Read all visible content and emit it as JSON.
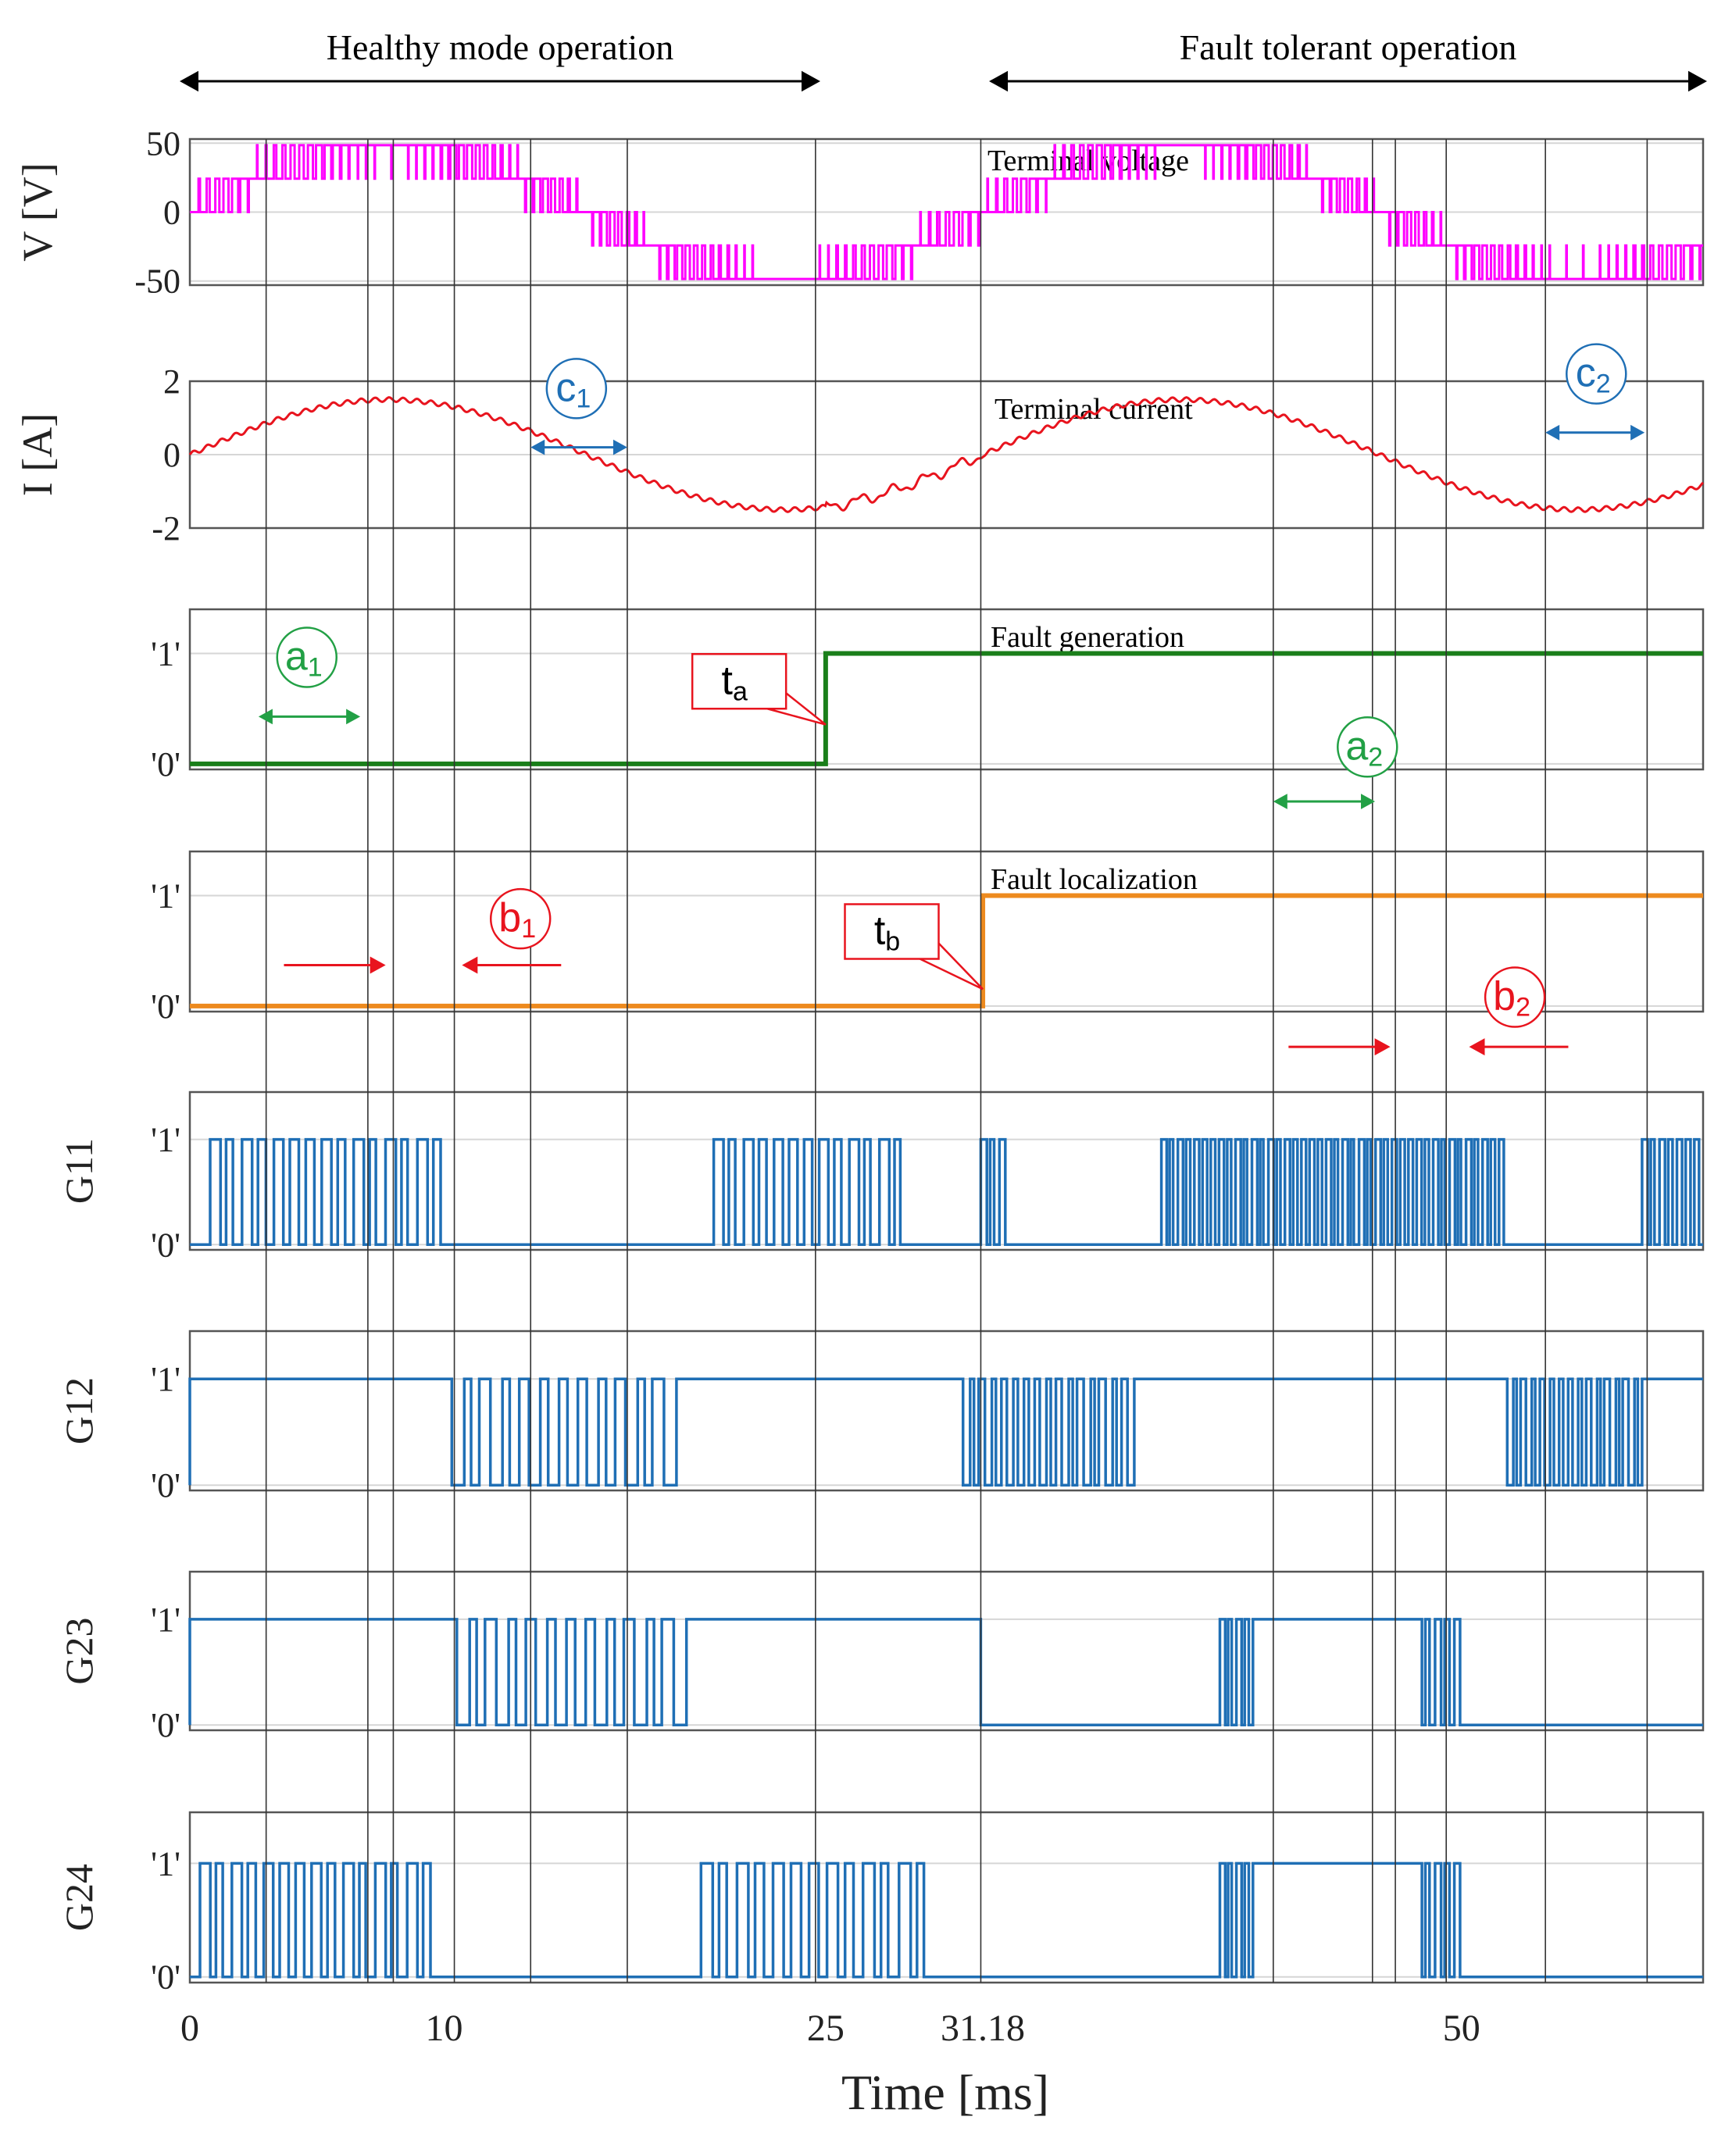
{
  "chart_data": {
    "type": "line",
    "title": "",
    "xlabel": "Time [ms]",
    "xlim": [
      0,
      59.5
    ],
    "x_ticks": [
      {
        "value": 0,
        "label": "0"
      },
      {
        "value": 10,
        "label": "10"
      },
      {
        "value": 25,
        "label": "25"
      },
      {
        "value": 31.18,
        "label": "31.18"
      },
      {
        "value": 50,
        "label": "50"
      }
    ],
    "top_annotations": {
      "healthy": {
        "label": "Healthy mode operation",
        "x_start": 0,
        "x_end": 25
      },
      "fault": {
        "label": "Fault tolerant operation",
        "x_start": 31.18,
        "x_end": 59.5
      }
    },
    "guide_lines_ms": [
      3,
      7,
      8,
      10.4,
      13.4,
      17.2,
      24.6,
      31.1,
      42.6,
      46.5,
      47.4,
      49.4,
      53.3,
      57.3
    ],
    "panels": [
      {
        "id": "voltage",
        "ylabel": "V [V]",
        "title": "Terminal voltage",
        "ylim": [
          -53,
          53
        ],
        "ticks": [
          {
            "v": 50,
            "label": "50"
          },
          {
            "v": 0,
            "label": "0"
          },
          {
            "v": -50,
            "label": "-50"
          }
        ],
        "color": "#ff00ff",
        "kind": "multilevel_pwm",
        "levels": [
          -50,
          -25,
          0,
          25,
          50
        ],
        "period_ms": 31.18
      },
      {
        "id": "current",
        "ylabel": "I [A]",
        "title": "Terminal current",
        "ylim": [
          -2,
          2
        ],
        "ticks": [
          {
            "v": 2,
            "label": "2"
          },
          {
            "v": 0,
            "label": "0"
          },
          {
            "v": -2,
            "label": "-2"
          }
        ],
        "color": "#e8141e",
        "kind": "sine_ripple",
        "amplitude": 1.5,
        "period_ms": 31.18
      },
      {
        "id": "fault_generation",
        "ylabel": "",
        "title": "Fault generation",
        "ylim": [
          -0.05,
          1.4
        ],
        "ticks": [
          {
            "v": 1,
            "label": "'1'"
          },
          {
            "v": 0,
            "label": "'0'"
          }
        ],
        "color": "#1a7f1a",
        "kind": "step",
        "step_at_ms": 25
      },
      {
        "id": "fault_localization",
        "ylabel": "",
        "title": "Fault localization",
        "ylim": [
          -0.05,
          1.4
        ],
        "ticks": [
          {
            "v": 1,
            "label": "'1'"
          },
          {
            "v": 0,
            "label": "'0'"
          }
        ],
        "color": "#ed8a1e",
        "kind": "step",
        "step_at_ms": 31.18
      },
      {
        "id": "G11",
        "ylabel": "G11",
        "title": "",
        "ylim": [
          -0.05,
          1.45
        ],
        "ticks": [
          {
            "v": 1,
            "label": "'1'"
          },
          {
            "v": 0,
            "label": "'0'"
          }
        ],
        "color": "#1f6fb5",
        "kind": "gate",
        "segments": [
          {
            "start": 0.8,
            "end": 10.2,
            "mode": "pwm",
            "dense": 15
          },
          {
            "start": 20.6,
            "end": 28.3,
            "mode": "pwm",
            "dense": 13
          },
          {
            "start": 31.1,
            "end": 32.2,
            "mode": "pwm",
            "dense": 3
          },
          {
            "start": 38.2,
            "end": 51.8,
            "mode": "pwm",
            "dense": 42
          },
          {
            "start": 57.1,
            "end": 59.5,
            "mode": "pwm",
            "dense": 7
          }
        ]
      },
      {
        "id": "G12",
        "ylabel": "G12",
        "title": "",
        "ylim": [
          -0.05,
          1.45
        ],
        "ticks": [
          {
            "v": 1,
            "label": "'1'"
          },
          {
            "v": 0,
            "label": "'0'"
          }
        ],
        "color": "#1f6fb5",
        "kind": "gate",
        "segments": [
          {
            "start": 0,
            "end": 10.3,
            "mode": "high"
          },
          {
            "start": 10.3,
            "end": 19.4,
            "mode": "pwm_inv",
            "dense": 12
          },
          {
            "start": 19.4,
            "end": 30.4,
            "mode": "high"
          },
          {
            "start": 30.4,
            "end": 37.3,
            "mode": "pwm_inv",
            "dense": 16
          },
          {
            "start": 37.3,
            "end": 51.8,
            "mode": "high"
          },
          {
            "start": 51.8,
            "end": 57.3,
            "mode": "pwm_inv",
            "dense": 15
          },
          {
            "start": 57.3,
            "end": 59.5,
            "mode": "high"
          }
        ]
      },
      {
        "id": "G23",
        "ylabel": "G23",
        "title": "",
        "ylim": [
          -0.05,
          1.45
        ],
        "ticks": [
          {
            "v": 1,
            "label": "'1'"
          },
          {
            "v": 0,
            "label": "'0'"
          }
        ],
        "color": "#1f6fb5",
        "kind": "gate",
        "segments": [
          {
            "start": 0,
            "end": 10.5,
            "mode": "high"
          },
          {
            "start": 10.5,
            "end": 19.8,
            "mode": "pwm_inv",
            "dense": 12
          },
          {
            "start": 19.8,
            "end": 30.8,
            "mode": "high"
          },
          {
            "start": 31.1,
            "end": 40.5,
            "mode": "low"
          },
          {
            "start": 40.5,
            "end": 41.8,
            "mode": "pwm",
            "dense": 4
          },
          {
            "start": 41.8,
            "end": 48.2,
            "mode": "high"
          },
          {
            "start": 48.2,
            "end": 50.1,
            "mode": "pwm",
            "dense": 5
          },
          {
            "start": 50.1,
            "end": 59.5,
            "mode": "low"
          }
        ]
      },
      {
        "id": "G24",
        "ylabel": "G24",
        "title": "",
        "ylim": [
          -0.05,
          1.45
        ],
        "ticks": [
          {
            "v": 1,
            "label": "'1'"
          },
          {
            "v": 0,
            "label": "'0'"
          }
        ],
        "color": "#1f6fb5",
        "kind": "gate",
        "segments": [
          {
            "start": 0.4,
            "end": 9.8,
            "mode": "pwm",
            "dense": 15
          },
          {
            "start": 20.1,
            "end": 29.3,
            "mode": "pwm",
            "dense": 13
          },
          {
            "start": 40.5,
            "end": 41.8,
            "mode": "pwm",
            "dense": 4
          },
          {
            "start": 41.8,
            "end": 48.2,
            "mode": "high"
          },
          {
            "start": 48.2,
            "end": 50.1,
            "mode": "pwm",
            "dense": 5
          }
        ]
      }
    ],
    "markers": [
      {
        "id": "a1",
        "letter": "a",
        "sub": "1",
        "color": "#22a045",
        "style": "circle",
        "panel": "fault_generation",
        "x_ms": 4.6,
        "y_frac": 0.3,
        "arrow": {
          "type": "double",
          "x1_ms": 2.7,
          "x2_ms": 6.7,
          "y_frac": 0.67
        }
      },
      {
        "id": "a2",
        "letter": "a",
        "sub": "2",
        "color": "#22a045",
        "style": "circle",
        "panel": "fault_generation",
        "x_ms": 46.3,
        "y_frac": 0.86,
        "arrow": {
          "type": "double",
          "x1_ms": 42.6,
          "x2_ms": 46.6,
          "y_frac": 1.2
        }
      },
      {
        "id": "b1",
        "letter": "b",
        "sub": "1",
        "color": "#e8141e",
        "style": "circle",
        "panel": "fault_localization",
        "x_ms": 13.0,
        "y_frac": 0.42,
        "arrow": {
          "type": "converge",
          "x1_ms": 3.7,
          "x2_ms": 7.7,
          "x3_ms": 10.7,
          "x4_ms": 14.6,
          "y_frac": 0.71
        }
      },
      {
        "id": "b2",
        "letter": "b",
        "sub": "2",
        "color": "#e8141e",
        "style": "circle",
        "panel": "fault_localization",
        "x_ms": 52.1,
        "y_frac": 0.91,
        "arrow": {
          "type": "converge",
          "x1_ms": 43.2,
          "x2_ms": 47.2,
          "x3_ms": 50.3,
          "x4_ms": 54.2,
          "y_frac": 1.22
        }
      },
      {
        "id": "c1",
        "letter": "c",
        "sub": "1",
        "color": "#1f6fb5",
        "style": "circle",
        "panel": "current",
        "x_ms": 15.2,
        "y_frac": 0.05,
        "arrow": {
          "type": "double",
          "x1_ms": 13.4,
          "x2_ms": 17.2,
          "y_frac": 0.45
        }
      },
      {
        "id": "c2",
        "letter": "c",
        "sub": "2",
        "color": "#1f6fb5",
        "style": "circle",
        "panel": "current",
        "x_ms": 55.3,
        "y_frac": -0.05,
        "arrow": {
          "type": "double",
          "x1_ms": 53.3,
          "x2_ms": 57.2,
          "y_frac": 0.35
        }
      },
      {
        "id": "ta",
        "letter": "t",
        "sub": "a",
        "color": "#e8141e",
        "style": "box",
        "panel": "fault_generation",
        "x_ms": 21.6,
        "y_frac": 0.45,
        "pointer_ms": 25,
        "pointer_y_frac": 0.72
      },
      {
        "id": "tb",
        "letter": "t",
        "sub": "b",
        "color": "#e8141e",
        "style": "box",
        "panel": "fault_localization",
        "x_ms": 27.6,
        "y_frac": 0.5,
        "pointer_ms": 31.18,
        "pointer_y_frac": 0.86
      }
    ]
  }
}
